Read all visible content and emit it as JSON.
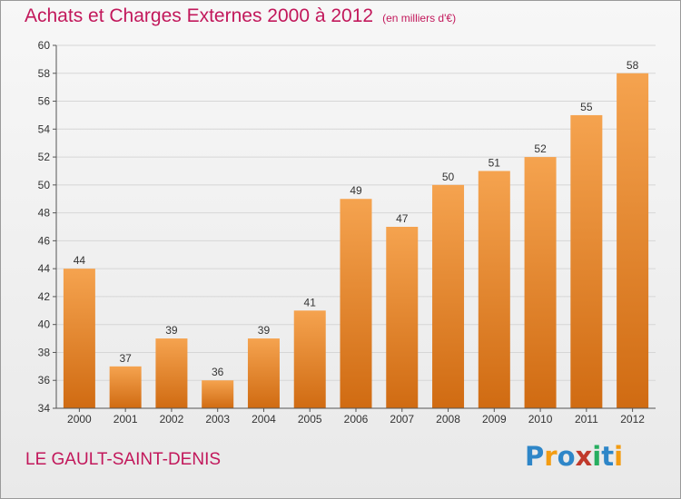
{
  "title": "Achats et Charges Externes 2000 à 2012",
  "title_unit": "(en milliers d'€)",
  "location": "LE GAULT-SAINT-DENIS",
  "brand": {
    "text": "Proxiti",
    "letters": [
      {
        "ch": "P",
        "color": "#2e86c8"
      },
      {
        "ch": "r",
        "color": "#f39c12"
      },
      {
        "ch": "o",
        "color": "#2e86c8"
      },
      {
        "ch": "x",
        "color": "#c0392b"
      },
      {
        "ch": "i",
        "color": "#27ae60"
      },
      {
        "ch": "t",
        "color": "#2e86c8"
      },
      {
        "ch": "i",
        "color": "#f39c12"
      }
    ]
  },
  "colors": {
    "title": "#c2185b",
    "bar_light": "#f5a34f",
    "bar_dark": "#d06b12",
    "grid": "#d6d6d6",
    "axis_text": "#333333"
  },
  "chart_data": {
    "type": "bar",
    "categories": [
      "2000",
      "2001",
      "2002",
      "2003",
      "2004",
      "2005",
      "2006",
      "2007",
      "2008",
      "2009",
      "2010",
      "2011",
      "2012"
    ],
    "values": [
      44,
      37,
      39,
      36,
      39,
      41,
      49,
      47,
      50,
      51,
      52,
      55,
      58
    ],
    "data_labels": [
      "44",
      "37",
      "39",
      "36",
      "39",
      "41",
      "49",
      "47",
      "50",
      "51",
      "52",
      "55",
      "58"
    ],
    "ylim": [
      34,
      60
    ],
    "yticks": [
      34,
      36,
      38,
      40,
      42,
      44,
      46,
      48,
      50,
      52,
      54,
      56,
      58,
      60
    ],
    "grid": true,
    "xlabel": "",
    "ylabel": ""
  }
}
